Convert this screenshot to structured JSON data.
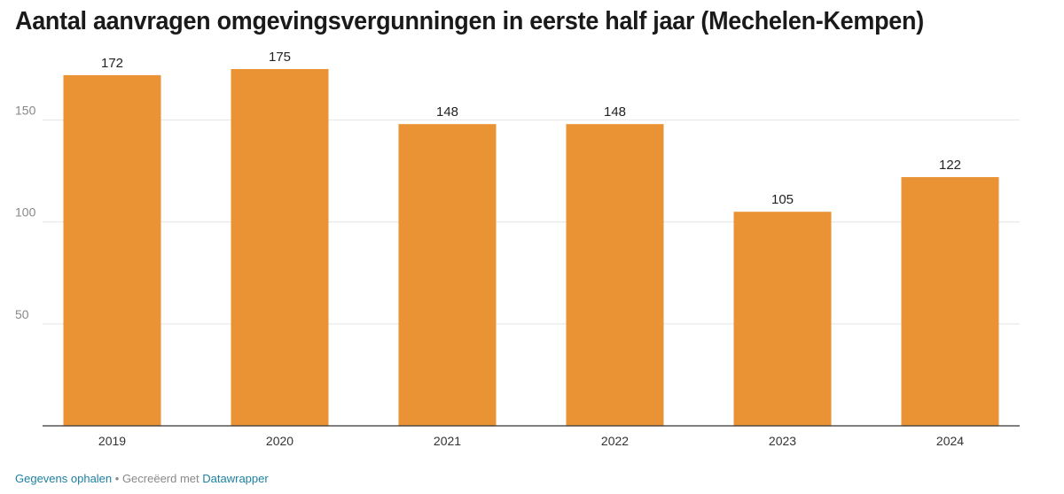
{
  "title": "Aantal aanvragen omgevingsvergunningen in eerste half jaar (Mechelen-Kempen)",
  "footer": {
    "get_data_label": "Gegevens ophalen",
    "separator": " • ",
    "created_with_label": "Gecreëerd met ",
    "datawrapper_label": "Datawrapper"
  },
  "colors": {
    "bar": "#e99335",
    "grid": "#e4e4e4",
    "baseline": "#333333",
    "link": "#1d81a2"
  },
  "chart_data": {
    "type": "bar",
    "categories": [
      "2019",
      "2020",
      "2021",
      "2022",
      "2023",
      "2024"
    ],
    "values": [
      172,
      175,
      148,
      148,
      105,
      122
    ],
    "value_labels": [
      "172",
      "175",
      "148",
      "148",
      "105",
      "122"
    ],
    "title": "Aantal aanvragen omgevingsvergunningen in eerste half jaar (Mechelen-Kempen)",
    "xlabel": "",
    "ylabel": "",
    "ylim": [
      0,
      175
    ],
    "y_ticks": [
      50,
      100,
      150
    ],
    "grid": true,
    "legend": "none"
  }
}
